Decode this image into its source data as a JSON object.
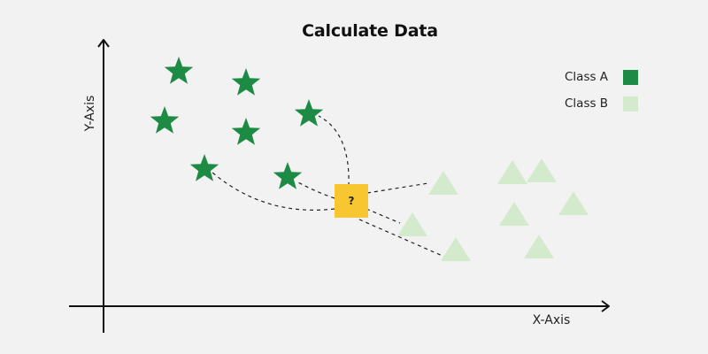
{
  "title": "Calculate Data",
  "axes": {
    "x_label": "X-Axis",
    "y_label": "Y-Axis"
  },
  "legend": {
    "items": [
      {
        "label": "Class A",
        "color": "#1e8b45"
      },
      {
        "label": "Class B",
        "color": "#d3ebcc"
      }
    ]
  },
  "query_point": {
    "label": "?",
    "color": "#f8c630"
  },
  "colors": {
    "class_a": "#1e8b45",
    "class_b": "#d3ebcc",
    "axis": "#111111",
    "connector": "#222222"
  },
  "class_a_icon": "star-icon",
  "class_b_icon": "triangle-icon"
}
